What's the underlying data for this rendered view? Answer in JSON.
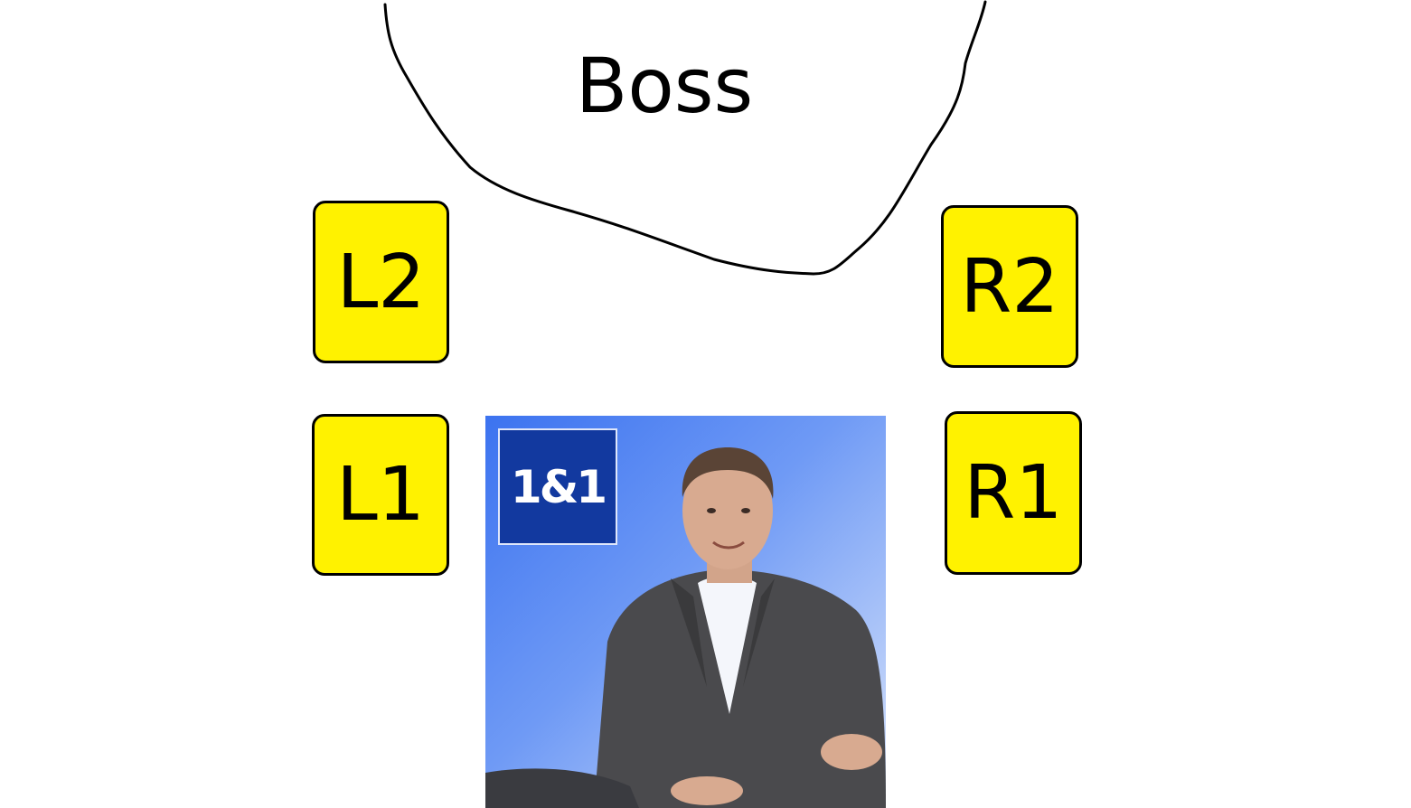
{
  "diagram": {
    "boss": {
      "label": "Boss"
    },
    "positions": [
      {
        "id": "l2",
        "label": "L2"
      },
      {
        "id": "l1",
        "label": "L1"
      },
      {
        "id": "r2",
        "label": "R2"
      },
      {
        "id": "r1",
        "label": "R1"
      }
    ],
    "photo": {
      "logo_text": "1&1",
      "logo_color": "#12399f"
    }
  },
  "colors": {
    "box_fill": "#fff200",
    "box_border": "#000000",
    "background": "#ffffff",
    "photo_background": "#4a7ff2"
  }
}
